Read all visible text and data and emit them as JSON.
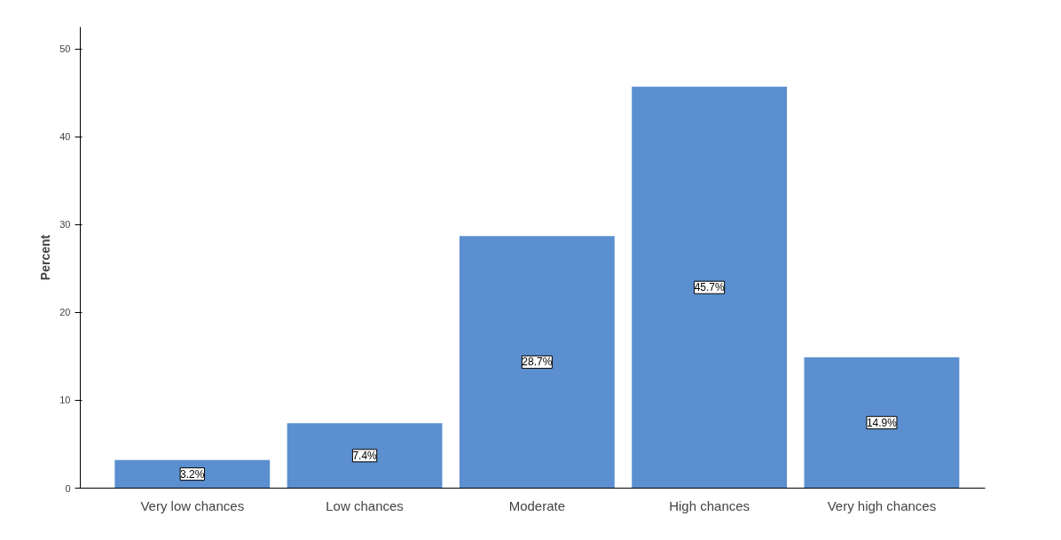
{
  "chart_data": {
    "type": "bar",
    "ylabel": "Percent",
    "categories": [
      "Very low chances",
      "Low chances",
      "Moderate",
      "High chances",
      "Very high chances"
    ],
    "values": [
      3.2,
      7.4,
      28.7,
      45.7,
      14.9
    ],
    "value_labels": [
      "3.2%",
      "7.4%",
      "28.7%",
      "45.7%",
      "14.9%"
    ],
    "color": "#5b8fd0",
    "ylim": [
      0,
      52.5
    ],
    "yticks": [
      0,
      10,
      20,
      30,
      40,
      50
    ],
    "grid": false
  }
}
